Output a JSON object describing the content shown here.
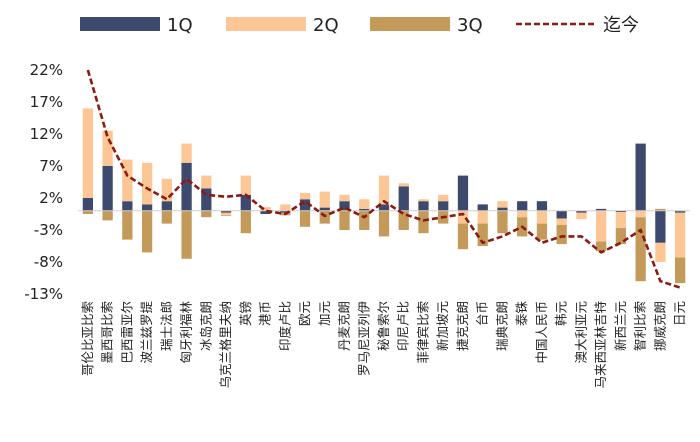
{
  "chart_data": {
    "type": "bar",
    "stacked": true,
    "ylabel_format": "percent",
    "ylim": [
      -13,
      22
    ],
    "yticks": [
      22,
      17,
      12,
      7,
      2,
      -3,
      -8,
      -13
    ],
    "ytick_labels": [
      "22%",
      "17%",
      "12%",
      "7%",
      "2%",
      "-3%",
      "-8%",
      "-13%"
    ],
    "legend_position": "top",
    "categories": [
      "哥伦比亚比索",
      "墨西哥比索",
      "巴西雷亚尔",
      "波兰兹罗提",
      "瑞士法郎",
      "匈牙利福林",
      "冰岛克朗",
      "乌克兰格里夫纳",
      "英镑",
      "港币",
      "印度卢比",
      "欧元",
      "加元",
      "丹麦克朗",
      "罗马尼亚列伊",
      "秘鲁索尔",
      "印尼卢比",
      "菲律宾比索",
      "新加坡元",
      "捷克克朗",
      "台币",
      "瑞典克朗",
      "泰铢",
      "中国人民币",
      "韩元",
      "澳大利亚元",
      "马来西亚林吉特",
      "新西兰元",
      "智利比索",
      "挪威克朗",
      "日元"
    ],
    "series": [
      {
        "name": "1Q",
        "color": "#3d4a6e",
        "kind": "bar",
        "values": [
          2.0,
          7.0,
          1.5,
          1.0,
          1.5,
          7.5,
          3.5,
          -0.3,
          2.5,
          -0.5,
          -0.3,
          1.8,
          0.5,
          1.5,
          0.3,
          1.0,
          3.8,
          1.5,
          1.5,
          5.5,
          1.0,
          0.5,
          1.5,
          1.5,
          -1.2,
          -0.3,
          0.3,
          -0.2,
          10.5,
          -5.0,
          -0.3
        ]
      },
      {
        "name": "2Q",
        "color": "#fdc795",
        "kind": "bar",
        "values": [
          14.0,
          5.5,
          6.5,
          6.5,
          3.5,
          3.0,
          2.0,
          -0.4,
          3.0,
          0.6,
          1.0,
          1.0,
          2.5,
          1.0,
          1.5,
          4.5,
          0.5,
          0.3,
          1.0,
          -2.0,
          -2.0,
          1.0,
          -1.0,
          -2.0,
          -1.0,
          -1.0,
          -4.8,
          -2.5,
          -1.0,
          -3.0,
          -7.0
        ]
      },
      {
        "name": "3Q",
        "color": "#c49a5a",
        "kind": "bar",
        "values": [
          -0.5,
          -1.5,
          -4.5,
          -6.5,
          -2.0,
          -7.5,
          -1.0,
          -0.1,
          -3.5,
          0.0,
          -0.4,
          -2.5,
          -2.0,
          -3.0,
          -3.0,
          -4.0,
          -3.0,
          -3.5,
          -2.0,
          -4.0,
          -3.5,
          -3.5,
          -3.0,
          -2.5,
          -3.0,
          0.0,
          -1.5,
          -2.5,
          -10.0,
          0.3,
          -4.0
        ]
      },
      {
        "name": "迄今",
        "color": "#8b1a10",
        "kind": "line",
        "values": [
          22.0,
          11.5,
          5.5,
          3.5,
          1.8,
          5.0,
          2.5,
          2.2,
          2.5,
          0.0,
          -0.5,
          1.5,
          -0.8,
          0.5,
          -1.0,
          1.5,
          -0.5,
          -1.5,
          -1.0,
          -0.5,
          -5.0,
          -4.0,
          -2.5,
          -5.0,
          -4.0,
          -4.0,
          -6.5,
          -5.0,
          -3.0,
          -11.0,
          -12.0
        ]
      }
    ]
  }
}
